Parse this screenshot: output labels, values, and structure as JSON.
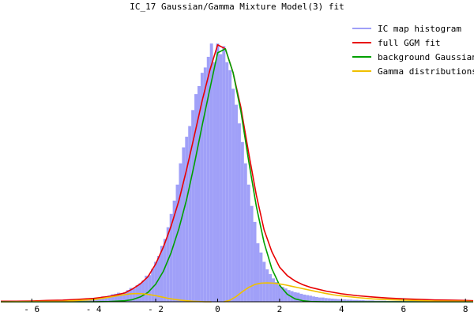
{
  "chart_data": {
    "type": "bar",
    "title": "IC_17 Gaussian/Gamma Mixture Model(3) fit",
    "xlabel": "",
    "ylabel": "",
    "xlim": [
      -7.0,
      8.25
    ],
    "ylim": [
      0,
      1.08
    ],
    "x_ticks": [
      -6,
      -4,
      -2,
      0,
      2,
      4,
      6,
      8
    ],
    "x_tick_labels": [
      "- 6",
      "- 4",
      "- 2",
      "0",
      "2",
      "4",
      "6",
      "8"
    ],
    "legend_position": "top-right",
    "grid": false,
    "histogram": {
      "name": "IC map histogram",
      "color": "#a0a0f8",
      "bin_width": 0.1,
      "x": [
        -5.0,
        -4.9,
        -4.8,
        -4.7,
        -4.6,
        -4.5,
        -4.4,
        -4.3,
        -4.2,
        -4.1,
        -4.0,
        -3.9,
        -3.8,
        -3.7,
        -3.6,
        -3.5,
        -3.4,
        -3.3,
        -3.2,
        -3.1,
        -3.0,
        -2.9,
        -2.8,
        -2.7,
        -2.6,
        -2.5,
        -2.4,
        -2.3,
        -2.2,
        -2.1,
        -2.0,
        -1.9,
        -1.8,
        -1.7,
        -1.6,
        -1.5,
        -1.4,
        -1.3,
        -1.2,
        -1.1,
        -1.0,
        -0.9,
        -0.8,
        -0.7,
        -0.6,
        -0.5,
        -0.4,
        -0.3,
        -0.2,
        -0.1,
        0.0,
        0.1,
        0.2,
        0.3,
        0.4,
        0.5,
        0.6,
        0.7,
        0.8,
        0.9,
        1.0,
        1.1,
        1.2,
        1.3,
        1.4,
        1.5,
        1.6,
        1.7,
        1.8,
        1.9,
        2.0,
        2.1,
        2.2,
        2.3,
        2.4,
        2.5,
        2.6,
        2.7,
        2.8,
        2.9,
        3.0,
        3.1,
        3.2,
        3.3,
        3.4,
        3.5,
        3.6,
        3.7,
        3.8,
        3.9,
        4.0,
        4.1,
        4.2,
        4.3,
        4.4,
        4.5,
        4.6,
        4.7,
        4.8,
        4.9,
        5.0,
        5.1,
        5.2,
        5.3,
        5.4,
        5.5,
        5.6,
        5.7,
        5.8,
        5.9,
        6.0,
        6.1,
        6.2,
        6.3,
        6.4,
        6.5,
        6.6,
        6.7,
        6.8,
        6.9,
        7.0
      ],
      "values": [
        0.003,
        0.003,
        0.004,
        0.004,
        0.005,
        0.006,
        0.007,
        0.008,
        0.009,
        0.011,
        0.012,
        0.014,
        0.016,
        0.02,
        0.018,
        0.024,
        0.028,
        0.03,
        0.034,
        0.032,
        0.036,
        0.044,
        0.052,
        0.05,
        0.062,
        0.07,
        0.08,
        0.098,
        0.1,
        0.124,
        0.15,
        0.172,
        0.21,
        0.236,
        0.28,
        0.33,
        0.38,
        0.44,
        0.52,
        0.58,
        0.62,
        0.66,
        0.72,
        0.78,
        0.81,
        0.86,
        0.88,
        0.92,
        0.97,
        0.9,
        0.97,
        0.93,
        0.96,
        0.9,
        0.87,
        0.8,
        0.74,
        0.67,
        0.6,
        0.52,
        0.44,
        0.36,
        0.3,
        0.22,
        0.185,
        0.15,
        0.122,
        0.104,
        0.088,
        0.074,
        0.062,
        0.056,
        0.05,
        0.044,
        0.04,
        0.036,
        0.034,
        0.03,
        0.027,
        0.025,
        0.023,
        0.02,
        0.018,
        0.016,
        0.016,
        0.014,
        0.013,
        0.012,
        0.011,
        0.01,
        0.009,
        0.009,
        0.008,
        0.008,
        0.007,
        0.007,
        0.006,
        0.006,
        0.005,
        0.005,
        0.005,
        0.004,
        0.004,
        0.004,
        0.004,
        0.003,
        0.003,
        0.003,
        0.003,
        0.003,
        0.002,
        0.002,
        0.002,
        0.002,
        0.002,
        0.002,
        0.002,
        0.002,
        0.001,
        0.001,
        0.001
      ]
    },
    "series": [
      {
        "name": "full GGM fit",
        "color": "#e80000",
        "x": [
          -7.0,
          -6.5,
          -6.0,
          -5.5,
          -5.0,
          -4.5,
          -4.0,
          -3.5,
          -3.0,
          -2.75,
          -2.5,
          -2.25,
          -2.0,
          -1.75,
          -1.5,
          -1.25,
          -1.0,
          -0.75,
          -0.5,
          -0.25,
          0.0,
          0.25,
          0.5,
          0.75,
          1.0,
          1.25,
          1.5,
          1.75,
          2.0,
          2.25,
          2.5,
          2.75,
          3.0,
          3.5,
          4.0,
          4.5,
          5.0,
          5.5,
          6.0,
          6.5,
          7.0,
          7.5,
          8.0,
          8.25
        ],
        "y": [
          0.002,
          0.002,
          0.003,
          0.005,
          0.006,
          0.009,
          0.013,
          0.02,
          0.033,
          0.048,
          0.067,
          0.094,
          0.142,
          0.206,
          0.285,
          0.38,
          0.498,
          0.625,
          0.755,
          0.87,
          0.965,
          0.95,
          0.86,
          0.73,
          0.56,
          0.4,
          0.27,
          0.188,
          0.13,
          0.098,
          0.078,
          0.064,
          0.054,
          0.04,
          0.03,
          0.023,
          0.018,
          0.014,
          0.011,
          0.009,
          0.007,
          0.006,
          0.005,
          0.004
        ]
      },
      {
        "name": "background Gaussian",
        "color": "#00a000",
        "x": [
          -7.0,
          -5.0,
          -4.0,
          -3.5,
          -3.0,
          -2.75,
          -2.5,
          -2.25,
          -2.0,
          -1.75,
          -1.5,
          -1.25,
          -1.0,
          -0.75,
          -0.5,
          -0.25,
          0.0,
          0.25,
          0.5,
          0.75,
          1.0,
          1.25,
          1.5,
          1.75,
          2.0,
          2.25,
          2.5,
          2.75,
          3.0,
          3.5,
          4.0,
          5.0,
          8.25
        ],
        "y": [
          0.0,
          0.0,
          0.0,
          0.001,
          0.004,
          0.008,
          0.018,
          0.035,
          0.066,
          0.115,
          0.185,
          0.275,
          0.385,
          0.518,
          0.662,
          0.8,
          0.935,
          0.95,
          0.86,
          0.715,
          0.53,
          0.358,
          0.222,
          0.124,
          0.062,
          0.028,
          0.011,
          0.004,
          0.001,
          0.0,
          0.0,
          0.0,
          0.0
        ]
      },
      {
        "name": "Gamma distributions",
        "color": "#f0c000",
        "segments": [
          {
            "x": [
              -7.0,
              -5.0,
              -4.0,
              -3.5,
              -3.2,
              -3.0,
              -2.8,
              -2.6,
              -2.4,
              -2.2,
              -2.0,
              -1.8,
              -1.6,
              -1.4,
              -1.2,
              -1.0,
              -0.8,
              -0.6,
              -0.4,
              -0.2
            ],
            "y": [
              0.0,
              0.002,
              0.008,
              0.017,
              0.023,
              0.027,
              0.03,
              0.031,
              0.03,
              0.027,
              0.023,
              0.018,
              0.013,
              0.009,
              0.006,
              0.004,
              0.002,
              0.001,
              0.0,
              0.0
            ]
          },
          {
            "x": [
              0.2,
              0.4,
              0.6,
              0.8,
              1.0,
              1.2,
              1.4,
              1.6,
              1.8,
              2.0,
              2.2,
              2.4,
              2.6,
              2.8,
              3.0,
              3.25,
              3.5,
              3.75,
              4.0,
              4.5,
              5.0,
              5.5,
              6.0,
              7.0,
              8.0,
              8.25
            ],
            "y": [
              0.0,
              0.006,
              0.02,
              0.038,
              0.054,
              0.065,
              0.07,
              0.071,
              0.07,
              0.067,
              0.063,
              0.058,
              0.053,
              0.048,
              0.043,
              0.037,
              0.031,
              0.026,
              0.022,
              0.016,
              0.011,
              0.008,
              0.006,
              0.003,
              0.002,
              0.001
            ]
          }
        ]
      }
    ]
  }
}
